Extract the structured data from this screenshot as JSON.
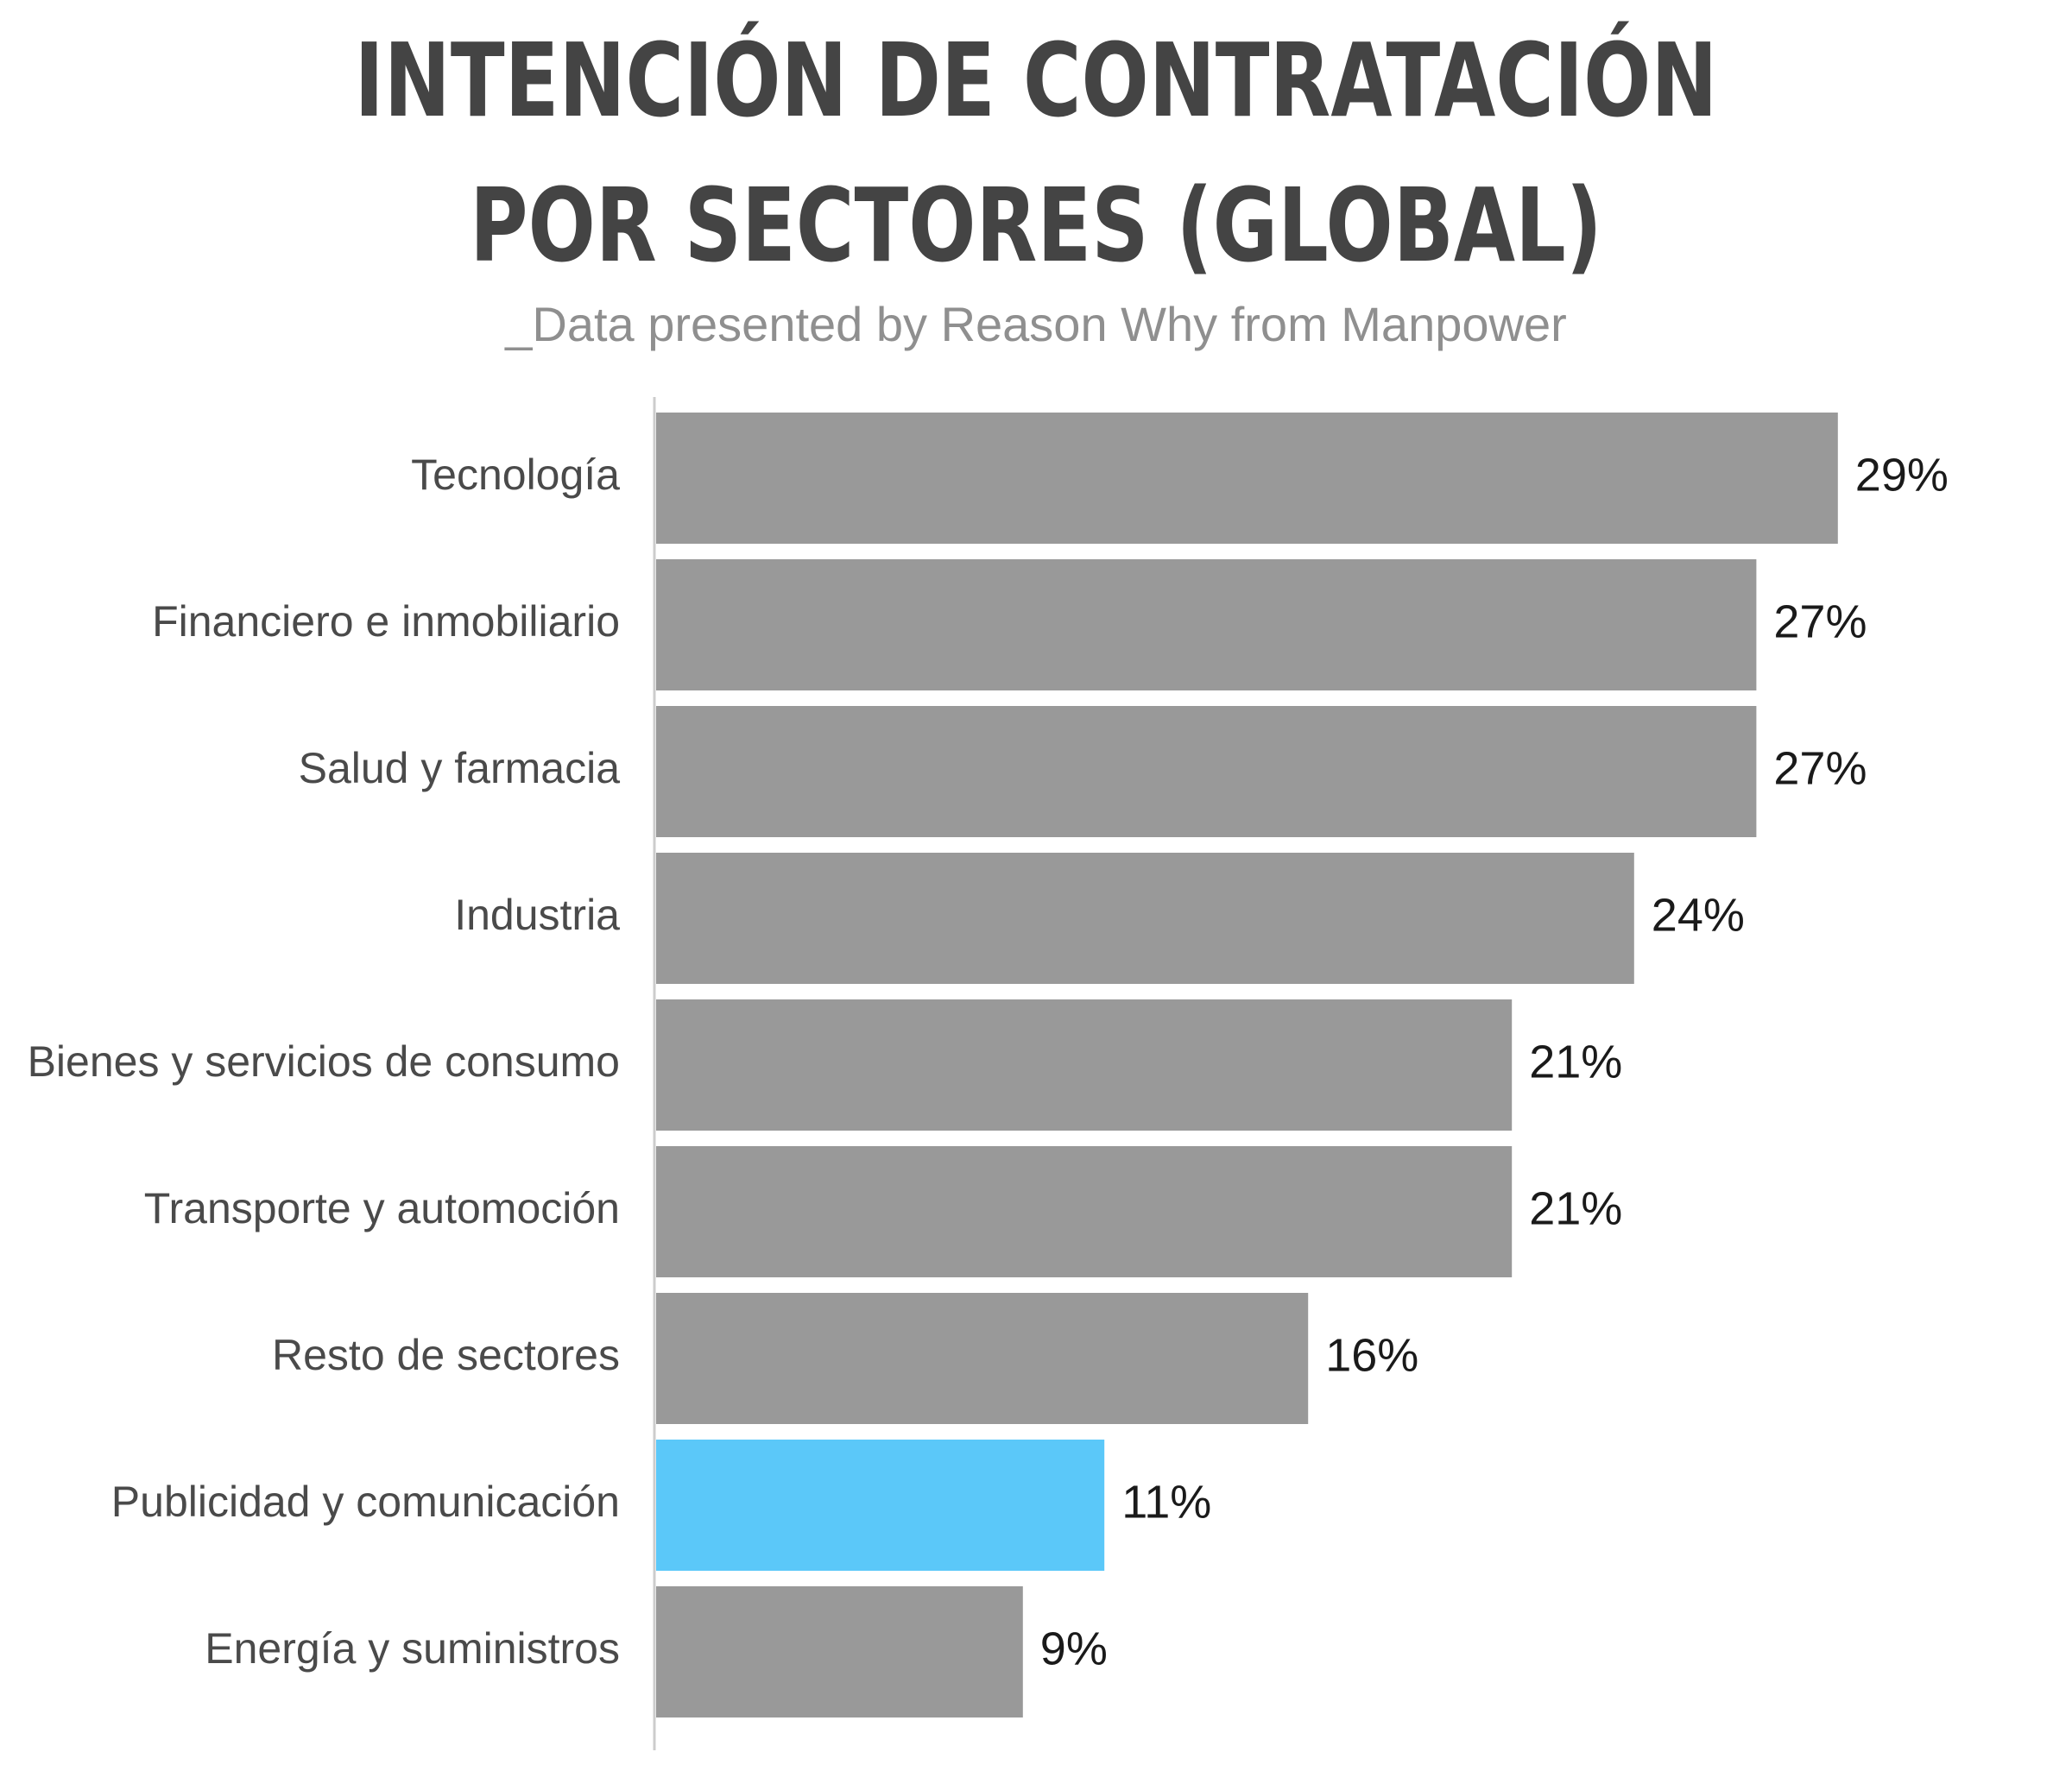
{
  "header": {
    "title_line1": "INTENCIÓN DE CONTRATACIÓN",
    "title_line2": "POR SECTORES (GLOBAL)",
    "subtitle": "_Data presented by Reason Why from Manpower"
  },
  "chart_data": {
    "type": "bar",
    "orientation": "horizontal",
    "title": "INTENCIÓN DE CONTRATACIÓN POR SECTORES (GLOBAL)",
    "subtitle": "_Data presented by Reason Why from Manpower",
    "categories": [
      "Tecnología",
      "Financiero e inmobiliario",
      "Salud y farmacia",
      "Industria",
      "Bienes y servicios de consumo",
      "Transporte y automoción",
      "Resto de sectores",
      "Publicidad y comunicación",
      "Energía y suministros"
    ],
    "values": [
      29,
      27,
      27,
      24,
      21,
      21,
      16,
      11,
      9
    ],
    "value_labels": [
      "29%",
      "27%",
      "27%",
      "24%",
      "21%",
      "21%",
      "16%",
      "11%",
      "9%"
    ],
    "unit": "%",
    "highlight_category": "Publicidad y comunicación",
    "colors": {
      "bar": "#999999",
      "highlight": "#5bc8f9",
      "axis": "#cccccc"
    },
    "xlabel": "",
    "ylabel": "",
    "grid": false,
    "legend": "none"
  }
}
